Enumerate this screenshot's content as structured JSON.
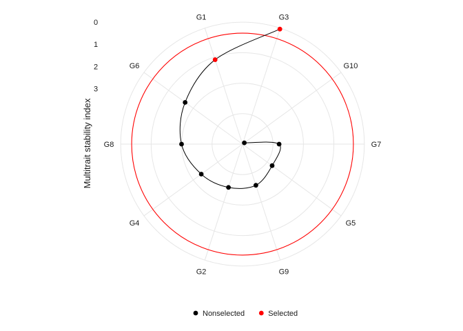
{
  "chart_data": {
    "type": "scatter",
    "coordinate_system": "polar",
    "ylabel": "Multitrait stability index",
    "radial_ticks": [
      "0",
      "1",
      "2",
      "3"
    ],
    "radial_direction": "inverted (0 at outer edge, increasing toward center)",
    "grid": true,
    "categories": [
      "G3",
      "G10",
      "G7",
      "G5",
      "G9",
      "G2",
      "G4",
      "G8",
      "G6",
      "G1"
    ],
    "points": [
      {
        "genotype": "G3",
        "value": 0.05,
        "group": "Selected"
      },
      {
        "genotype": "G1",
        "value": 1.5,
        "group": "Selected"
      },
      {
        "genotype": "G6",
        "value": 2.3,
        "group": "Nonselected"
      },
      {
        "genotype": "G8",
        "value": 2.75,
        "group": "Nonselected"
      },
      {
        "genotype": "G4",
        "value": 3.2,
        "group": "Nonselected"
      },
      {
        "genotype": "G2",
        "value": 3.45,
        "group": "Nonselected"
      },
      {
        "genotype": "G9",
        "value": 3.55,
        "group": "Nonselected"
      },
      {
        "genotype": "G5",
        "value": 3.85,
        "group": "Nonselected"
      },
      {
        "genotype": "G7",
        "value": 3.85,
        "group": "Nonselected"
      },
      {
        "genotype": "G10",
        "value": 5.4,
        "group": "Nonselected"
      }
    ],
    "path_order": [
      "G3",
      "G1",
      "G6",
      "G8",
      "G4",
      "G2",
      "G9",
      "G5",
      "G7",
      "G10"
    ],
    "selection_cutoff_value": 0.5,
    "legend": {
      "position": "bottom",
      "entries": [
        {
          "label": "Nonselected",
          "color": "#000000"
        },
        {
          "label": "Selected",
          "color": "#ff0000"
        }
      ]
    },
    "colors": {
      "nonselected": "#000000",
      "selected": "#ff0000",
      "cutoff_circle": "#ff0000",
      "grid": "#e6e6e6"
    }
  }
}
